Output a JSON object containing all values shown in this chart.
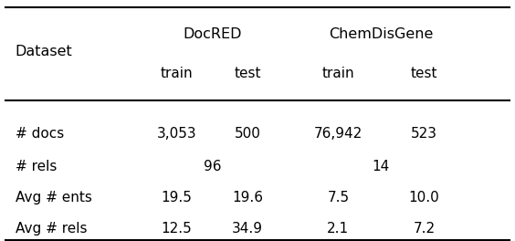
{
  "col_headers_top": [
    "DocRED",
    "ChemDisGene"
  ],
  "col_headers_sub": [
    "train",
    "test",
    "train",
    "test"
  ],
  "row_labels": [
    "# docs",
    "# rels",
    "Avg # ents",
    "Avg # rels"
  ],
  "rows": [
    [
      "3,053",
      "500",
      "76,942",
      "523"
    ],
    [
      "96",
      "14"
    ],
    [
      "19.5",
      "19.6",
      "7.5",
      "10.0"
    ],
    [
      "12.5",
      "34.9",
      "2.1",
      "7.2"
    ]
  ],
  "background_color": "#ffffff",
  "text_color": "#000000",
  "font_size": 11,
  "header_font_size": 11.5
}
